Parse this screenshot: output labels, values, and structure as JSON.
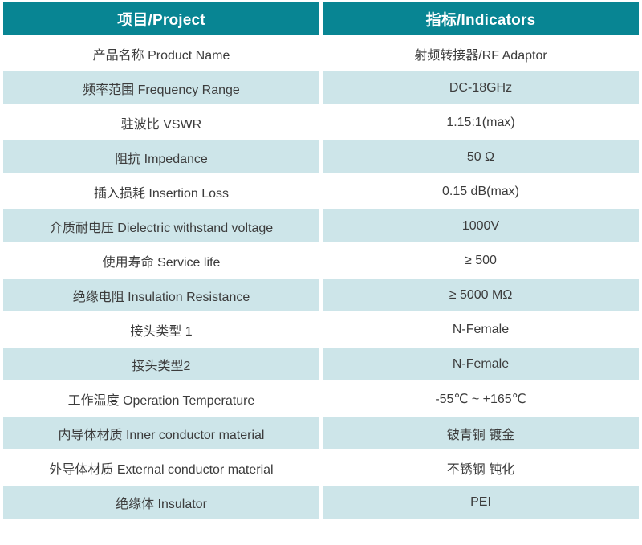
{
  "table": {
    "header": {
      "project": "项目/Project",
      "indicators": "指标/Indicators"
    },
    "rows": [
      {
        "project": "产品名称 Product Name",
        "indicator": "射频转接器/RF Adaptor"
      },
      {
        "project": "频率范围 Frequency Range",
        "indicator": "DC-18GHz"
      },
      {
        "project": "驻波比 VSWR",
        "indicator": "1.15:1(max)"
      },
      {
        "project": "阻抗 Impedance",
        "indicator": "50 Ω"
      },
      {
        "project": "插入损耗 Insertion Loss",
        "indicator": "0.15 dB(max)"
      },
      {
        "project": "介质耐电压 Dielectric withstand voltage",
        "indicator": "1000V"
      },
      {
        "project": "使用寿命 Service life",
        "indicator": "≥ 500"
      },
      {
        "project": "绝缘电阻 Insulation Resistance",
        "indicator": "≥ 5000 MΩ"
      },
      {
        "project": "接头类型 1",
        "indicator": "N-Female"
      },
      {
        "project": "接头类型2",
        "indicator": "N-Female"
      },
      {
        "project": "工作温度 Operation Temperature",
        "indicator": "-55℃ ~ +165℃"
      },
      {
        "project": "内导体材质 Inner conductor material",
        "indicator": "铍青铜 镀金"
      },
      {
        "project": "外导体材质 External conductor material",
        "indicator": "不锈钢 钝化"
      },
      {
        "project": "绝缘体 Insulator",
        "indicator": "PEI"
      }
    ],
    "colors": {
      "header_bg": "#088593",
      "header_text": "#ffffff",
      "row_bg": "#ffffff",
      "row_alt_bg": "#cde5e9",
      "body_text": "#3c3c3c"
    }
  }
}
